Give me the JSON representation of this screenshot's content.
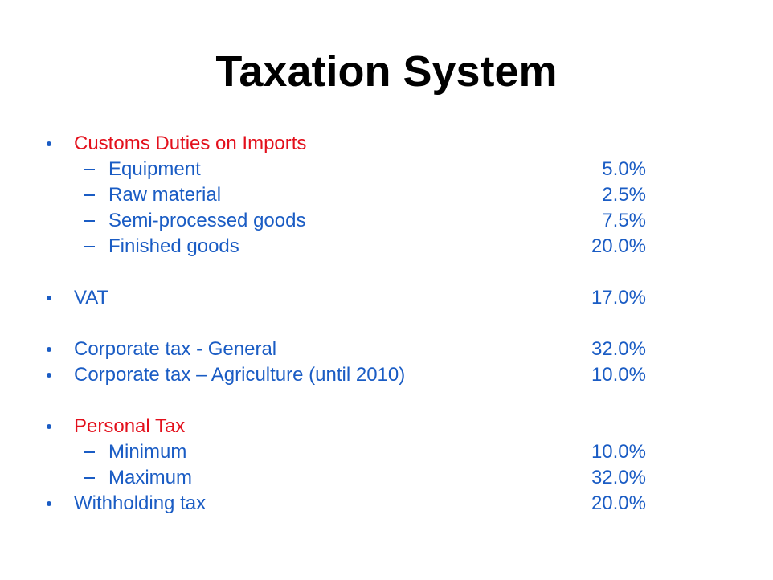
{
  "title": "Taxation System",
  "sections": [
    {
      "label": "Customs Duties on Imports",
      "items": [
        {
          "label": "Equipment",
          "value": "5.0%"
        },
        {
          "label": "Raw material",
          "value": "2.5%"
        },
        {
          "label": "Semi-processed goods",
          "value": "7.5%"
        },
        {
          "label": "Finished goods",
          "value": "20.0%"
        }
      ]
    },
    {
      "label": "VAT",
      "value": "17.0%"
    },
    {
      "label": "Corporate tax",
      "detail": "- General",
      "value": "32.0%"
    },
    {
      "label": "Corporate tax",
      "detail": "– Agriculture (until 2010)",
      "value": "10.0%"
    },
    {
      "label": "Personal Tax",
      "items": [
        {
          "label": "Minimum",
          "value": "10.0%"
        },
        {
          "label": "Maximum",
          "value": "32.0%"
        }
      ]
    },
    {
      "label": "Withholding tax",
      "value": "20.0%"
    }
  ]
}
